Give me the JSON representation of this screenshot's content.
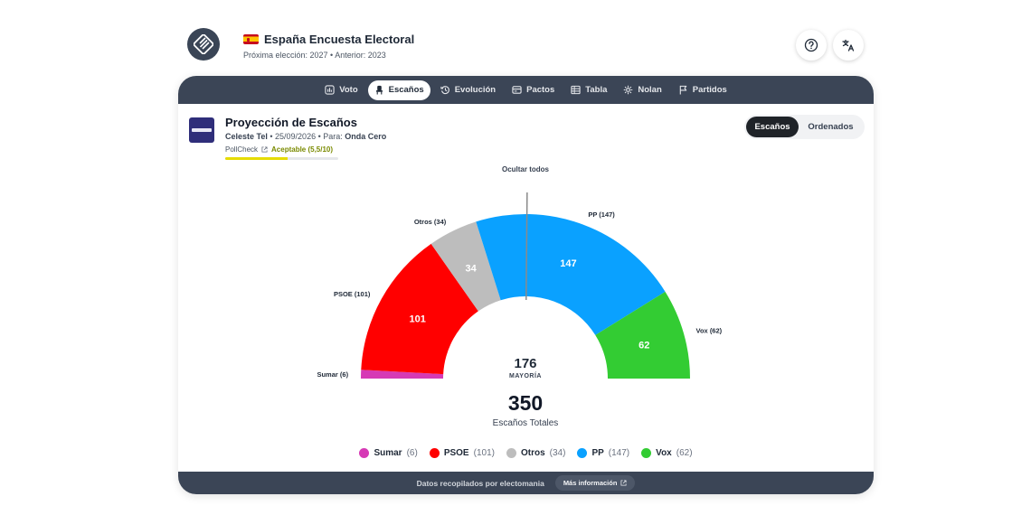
{
  "app": {
    "title": "España Encuesta Electoral",
    "subtitle": "Próxima elección: 2027 • Anterior: 2023"
  },
  "icons": {
    "logo": "electomania-logo-icon",
    "flag": "spain-flag-icon",
    "help": "help-circle-icon",
    "language": "translate-icon"
  },
  "nav": {
    "tabs": [
      {
        "label": "Voto",
        "icon": "bar-chart-icon",
        "active": false
      },
      {
        "label": "Escaños",
        "icon": "seat-icon",
        "active": true
      },
      {
        "label": "Evolución",
        "icon": "history-icon",
        "active": false
      },
      {
        "label": "Pactos",
        "icon": "pacts-icon",
        "active": false
      },
      {
        "label": "Tabla",
        "icon": "table-icon",
        "active": false
      },
      {
        "label": "Nolan",
        "icon": "nolan-icon",
        "active": false
      },
      {
        "label": "Partidos",
        "icon": "flag-icon",
        "active": false
      }
    ]
  },
  "poll": {
    "title": "Proyección de Escaños",
    "pollster": "Celeste Tel",
    "date": "25/09/2026",
    "for_label": "Para:",
    "client": "Onda Cero",
    "pollcheck_label": "PollCheck",
    "pollcheck_rating": "Aceptable (5,5/10)",
    "pollcheck_score": 0.55
  },
  "view_toggle": {
    "options": [
      "Escaños",
      "Ordenados"
    ],
    "selected": "Escaños"
  },
  "chart_controls": {
    "hide_all_label": "Ocultar todos"
  },
  "chart_data": {
    "type": "pie",
    "style": "semicircle-parliament",
    "categories": [
      "Sumar",
      "PSOE",
      "Otros",
      "PP",
      "Vox"
    ],
    "values": [
      6,
      101,
      34,
      147,
      62
    ],
    "colors": [
      "#d63ab5",
      "#ff0000",
      "#bdbdbd",
      "#0aa1ff",
      "#33cc33"
    ],
    "outer_labels": [
      "Sumar (6)",
      "PSOE (101)",
      "Otros (34)",
      "PP (147)",
      "Vox (62)"
    ],
    "majority": 176,
    "majority_label": "MAYORÍA",
    "total": 350,
    "total_label": "Escaños Totales"
  },
  "legend": {
    "items": [
      {
        "name": "Sumar",
        "count": "(6)"
      },
      {
        "name": "PSOE",
        "count": "(101)"
      },
      {
        "name": "Otros",
        "count": "(34)"
      },
      {
        "name": "PP",
        "count": "(147)"
      },
      {
        "name": "Vox",
        "count": "(62)"
      }
    ]
  },
  "footer": {
    "text": "Datos recopilados por electomania",
    "more_label": "Más información"
  }
}
